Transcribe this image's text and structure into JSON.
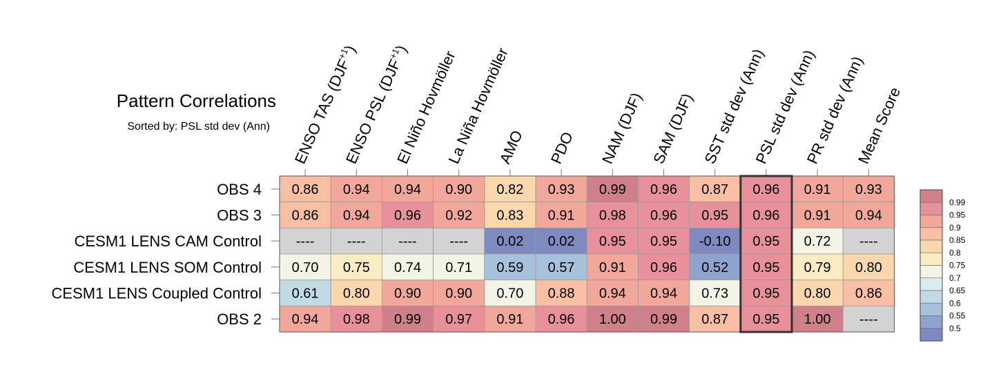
{
  "chart_data": {
    "type": "heatmap",
    "title": "Pattern Correlations",
    "subtitle": "Sorted by: PSL std dev (Ann)",
    "columns": [
      {
        "text": "ENSO TAS (DJF",
        "sup": "+1",
        "end": ")"
      },
      {
        "text": "ENSO PSL (DJF",
        "sup": "+1",
        "end": ")"
      },
      {
        "text": "El Niño Hovmöller",
        "sup": "",
        "end": ""
      },
      {
        "text": "La Niña Hovmöller",
        "sup": "",
        "end": ""
      },
      {
        "text": "AMO",
        "sup": "",
        "end": ""
      },
      {
        "text": "PDO",
        "sup": "",
        "end": ""
      },
      {
        "text": "NAM (DJF)",
        "sup": "",
        "end": ""
      },
      {
        "text": "SAM (DJF)",
        "sup": "",
        "end": ""
      },
      {
        "text": "SST std dev (Ann)",
        "sup": "",
        "end": ""
      },
      {
        "text": "PSL std dev (Ann)",
        "sup": "",
        "end": ""
      },
      {
        "text": "PR std dev (Ann)",
        "sup": "",
        "end": ""
      },
      {
        "text": "Mean Score",
        "sup": "",
        "end": ""
      }
    ],
    "rows": [
      "OBS 4",
      "OBS 3",
      "CESM1 LENS CAM Control",
      "CESM1 LENS SOM Control",
      "CESM1 LENS Coupled Control",
      "OBS 2"
    ],
    "values": [
      [
        0.86,
        0.94,
        0.94,
        0.9,
        0.82,
        0.93,
        0.99,
        0.96,
        0.87,
        0.96,
        0.91,
        0.93
      ],
      [
        0.86,
        0.94,
        0.96,
        0.92,
        0.83,
        0.91,
        0.98,
        0.96,
        0.95,
        0.96,
        0.91,
        0.94
      ],
      [
        null,
        null,
        null,
        null,
        0.02,
        0.02,
        0.95,
        0.95,
        -0.1,
        0.95,
        0.72,
        null
      ],
      [
        0.7,
        0.75,
        0.74,
        0.71,
        0.59,
        0.57,
        0.91,
        0.96,
        0.52,
        0.95,
        0.79,
        0.8
      ],
      [
        0.61,
        0.8,
        0.9,
        0.9,
        0.7,
        0.88,
        0.94,
        0.94,
        0.73,
        0.95,
        0.8,
        0.86
      ],
      [
        0.94,
        0.98,
        0.99,
        0.97,
        0.91,
        0.96,
        1.0,
        0.99,
        0.87,
        0.95,
        1.0,
        null
      ]
    ],
    "missing_label": "----",
    "highlighted_column": 9,
    "missing_color": "#d3d3d3",
    "colorbar": {
      "levels": [
        "0.99",
        "0.95",
        "0.9",
        "0.85",
        "0.8",
        "0.75",
        "0.7",
        "0.65",
        "0.6",
        "0.55",
        "0.5"
      ],
      "thresholds": [
        0.99,
        0.95,
        0.9,
        0.85,
        0.8,
        0.75,
        0.7,
        0.65,
        0.6,
        0.55,
        0.5
      ],
      "colors": [
        "#d0808a",
        "#e8919a",
        "#f1a79a",
        "#f8bfa3",
        "#fbd7ae",
        "#fcecc4",
        "#f3f3e6",
        "#dcebee",
        "#c0dbe6",
        "#a6c1db",
        "#8fa3cf",
        "#7e8ac0"
      ]
    }
  }
}
